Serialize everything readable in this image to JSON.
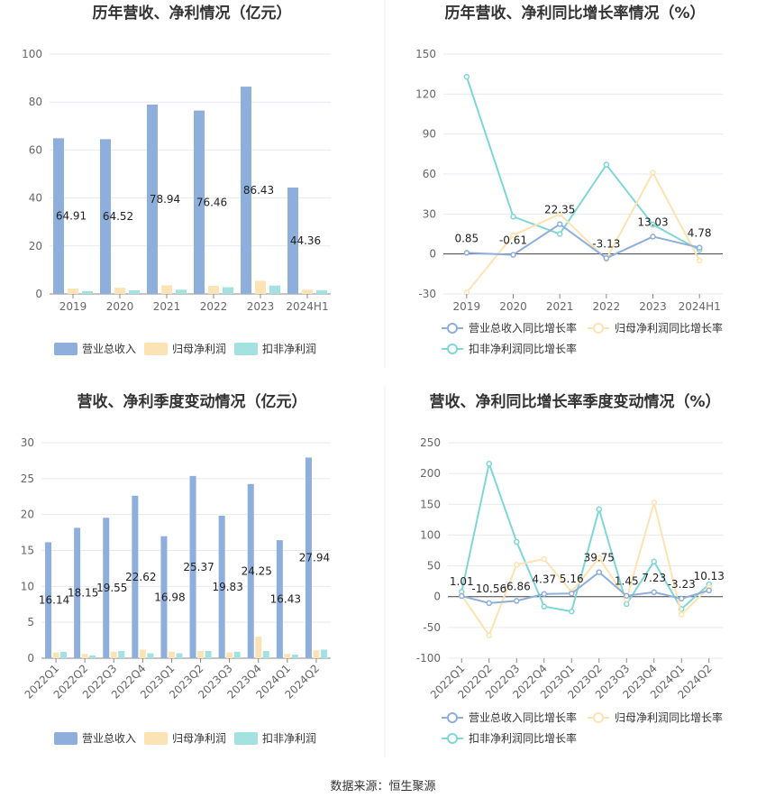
{
  "footer": {
    "source": "数据来源：恒生聚源"
  },
  "colors": {
    "revenue": "#8eaedc",
    "net_profit": "#fbe3b5",
    "deducted_net_profit": "#a4e2e2",
    "revenue_line": "#8eaedc",
    "net_profit_line": "#fce3b0",
    "deducted_line": "#7fd6d6",
    "grid": "#e6e9f0",
    "axis": "#555555",
    "title": "#333333"
  },
  "chart_data": [
    {
      "id": "annual-amounts",
      "type": "bar",
      "title": "历年营收、净利情况（亿元）",
      "categories": [
        "2019",
        "2020",
        "2021",
        "2022",
        "2023",
        "2024H1"
      ],
      "ylim": [
        0,
        100
      ],
      "yticks": [
        0,
        20,
        40,
        60,
        80,
        100
      ],
      "grid": true,
      "legend_position": "bottom",
      "series": [
        {
          "name": "营业总收入",
          "values": [
            64.91,
            64.52,
            78.94,
            76.46,
            86.43,
            44.36
          ],
          "labels": [
            "64.91",
            "64.52",
            "78.94",
            "76.46",
            "86.43",
            "44.36"
          ]
        },
        {
          "name": "归母净利润",
          "values": [
            2.3,
            2.6,
            3.6,
            3.4,
            5.5,
            1.8
          ]
        },
        {
          "name": "扣非净利润",
          "values": [
            1.2,
            1.5,
            1.8,
            2.8,
            3.5,
            1.6
          ]
        }
      ]
    },
    {
      "id": "annual-growth",
      "type": "line",
      "title": "历年营收、净利同比增长率情况（%）",
      "categories": [
        "2019",
        "2020",
        "2021",
        "2022",
        "2023",
        "2024H1"
      ],
      "ylim": [
        -30,
        150
      ],
      "yticks": [
        -30,
        0,
        30,
        60,
        90,
        120,
        150
      ],
      "grid": true,
      "legend_position": "bottom",
      "series": [
        {
          "name": "营业总收入同比增长率",
          "values": [
            0.85,
            -0.61,
            22.35,
            -3.13,
            13.03,
            4.78
          ],
          "labels": [
            "0.85",
            "-0.61",
            "22.35",
            "-3.13",
            "13.03",
            "4.78"
          ]
        },
        {
          "name": "归母净利润同比增长率",
          "values": [
            -29,
            14,
            30,
            -4,
            61,
            -5
          ]
        },
        {
          "name": "扣非净利润同比增长率",
          "values": [
            133,
            28,
            15,
            67,
            22,
            3
          ]
        }
      ]
    },
    {
      "id": "quarterly-amounts",
      "type": "bar",
      "title": "营收、净利季度变动情况（亿元）",
      "categories": [
        "2022Q1",
        "2022Q2",
        "2022Q3",
        "2022Q4",
        "2023Q1",
        "2023Q2",
        "2023Q3",
        "2023Q4",
        "2024Q1",
        "2024Q2"
      ],
      "ylim": [
        0,
        30
      ],
      "yticks": [
        0,
        5,
        10,
        15,
        20,
        25,
        30
      ],
      "grid": true,
      "legend_position": "bottom",
      "series": [
        {
          "name": "营业总收入",
          "values": [
            16.14,
            18.15,
            19.55,
            22.62,
            16.98,
            25.37,
            19.83,
            24.25,
            16.43,
            27.94
          ],
          "labels": [
            "16.14",
            "18.15",
            "19.55",
            "22.62",
            "16.98",
            "25.37",
            "19.83",
            "24.25",
            "16.43",
            "27.94"
          ]
        },
        {
          "name": "归母净利润",
          "values": [
            0.8,
            0.6,
            0.9,
            1.2,
            0.9,
            1.0,
            0.8,
            3.0,
            0.6,
            1.1
          ]
        },
        {
          "name": "扣非净利润",
          "values": [
            0.9,
            0.4,
            1.0,
            0.7,
            0.7,
            1.0,
            0.9,
            1.0,
            0.5,
            1.2
          ]
        }
      ]
    },
    {
      "id": "quarterly-growth",
      "type": "line",
      "title": "营收、净利同比增长率季度变动情况（%）",
      "categories": [
        "2022Q1",
        "2022Q2",
        "2022Q3",
        "2022Q4",
        "2023Q1",
        "2023Q2",
        "2023Q3",
        "2023Q4",
        "2024Q1",
        "2024Q2"
      ],
      "ylim": [
        -100,
        250
      ],
      "yticks": [
        -100,
        -50,
        0,
        50,
        100,
        150,
        200,
        250
      ],
      "grid": true,
      "legend_position": "bottom",
      "series": [
        {
          "name": "营业总收入同比增长率",
          "values": [
            1.01,
            -10.56,
            -6.86,
            4.37,
            5.16,
            39.75,
            1.45,
            7.23,
            -3.23,
            10.13
          ],
          "labels": [
            "1.01",
            "-10.56",
            "-6.86",
            "4.37",
            "5.16",
            "39.75",
            "1.45",
            "7.23",
            "-3.23",
            "10.13"
          ]
        },
        {
          "name": "归母净利润同比增长率",
          "values": [
            2,
            -63,
            52,
            61,
            8,
            63,
            -4,
            153,
            -29,
            15
          ]
        },
        {
          "name": "扣非净利润同比增长率",
          "values": [
            8,
            216,
            89,
            -16,
            -24,
            142,
            -12,
            57,
            -20,
            20
          ]
        }
      ]
    }
  ]
}
